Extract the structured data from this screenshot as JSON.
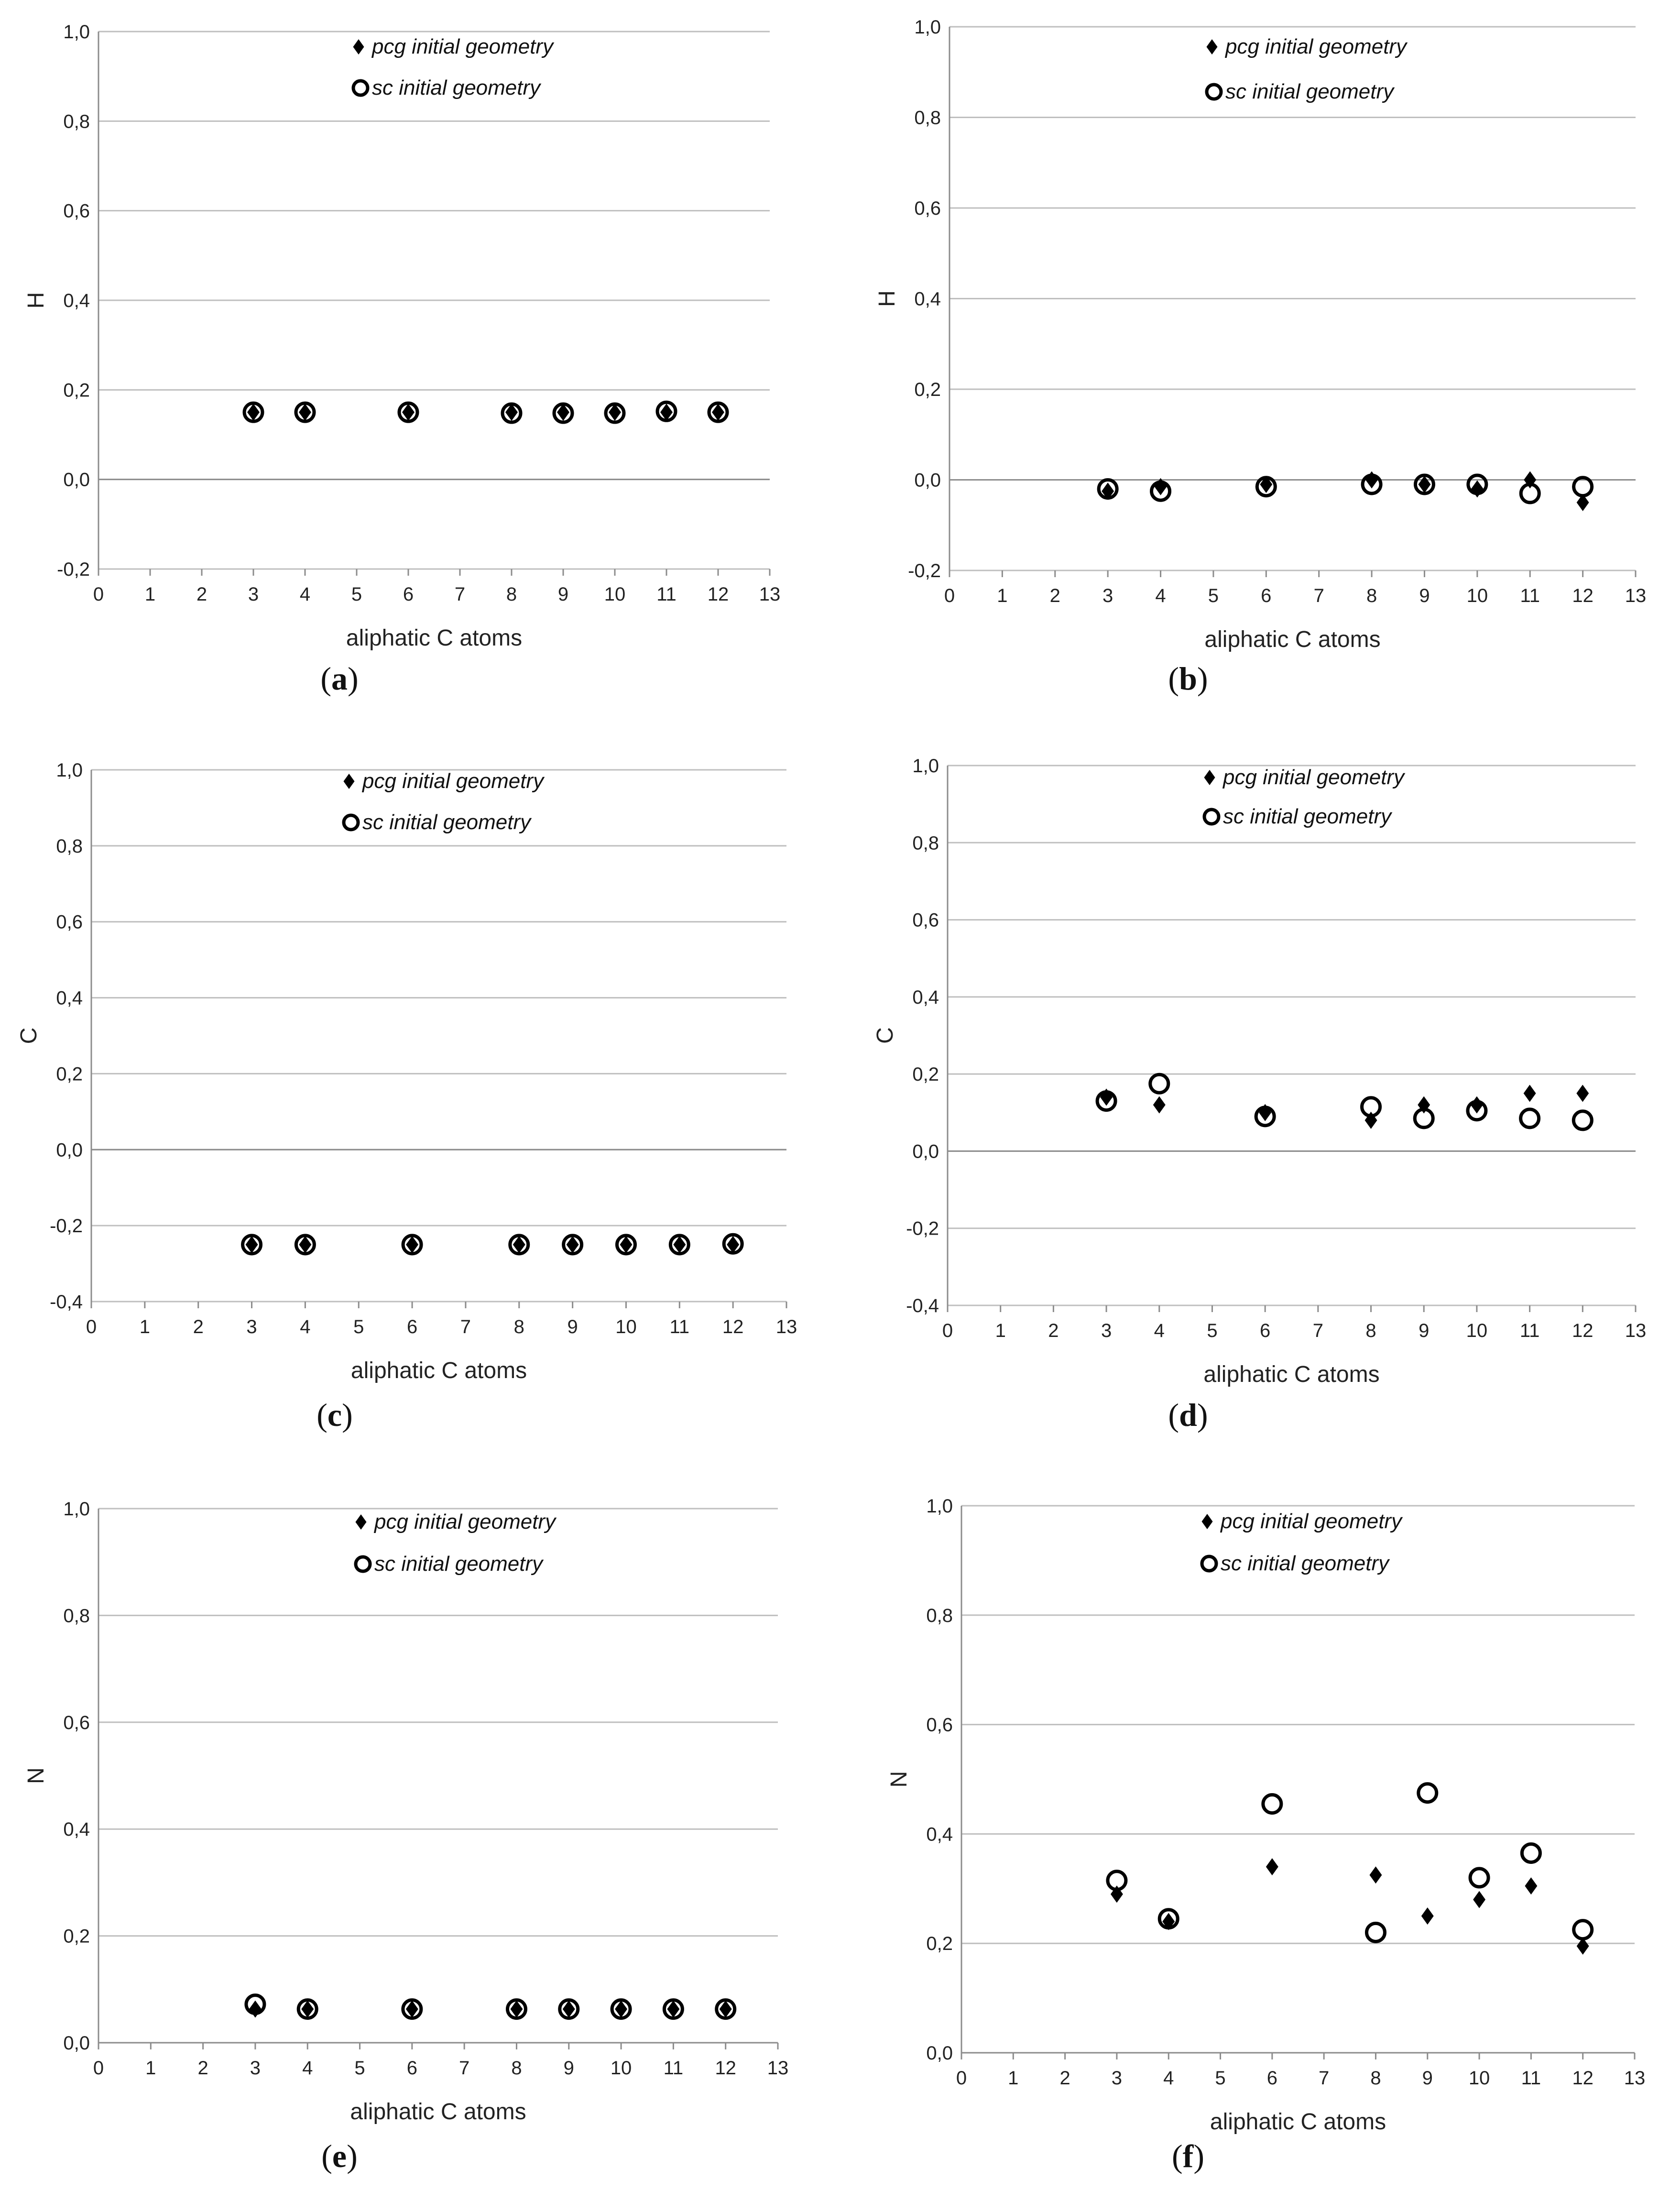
{
  "colors": {
    "background": "#ffffff",
    "grid": "#bfbfbf",
    "axis": "#8c8c8c",
    "marker": "#000000",
    "text": "#222222"
  },
  "captions": [
    "a",
    "b",
    "c",
    "d",
    "e",
    "f"
  ],
  "chart_data": [
    {
      "id": "a",
      "type": "scatter",
      "title": "",
      "xlabel": "aliphatic C atoms",
      "ylabel": "H",
      "xlim": [
        0,
        13
      ],
      "ylim": [
        -0.2,
        1.0
      ],
      "x_ticks": [
        "0",
        "1",
        "2",
        "3",
        "4",
        "5",
        "6",
        "7",
        "8",
        "9",
        "10",
        "11",
        "12",
        "13"
      ],
      "y_ticks": [
        "-0,2",
        "0,0",
        "0,2",
        "0,4",
        "0,6",
        "0,8",
        "1,0"
      ],
      "legend": [
        "pcg initial geometry",
        "sc initial geometry"
      ],
      "series": [
        {
          "name": "pcg initial geometry",
          "marker": "diamond",
          "x": [
            3,
            4,
            6,
            8,
            9,
            10,
            11,
            12
          ],
          "y": [
            0.15,
            0.15,
            0.15,
            0.15,
            0.15,
            0.15,
            0.15,
            0.15
          ]
        },
        {
          "name": "sc initial geometry",
          "marker": "circle",
          "x": [
            3,
            4,
            6,
            8,
            9,
            10,
            11,
            12
          ],
          "y": [
            0.15,
            0.15,
            0.15,
            0.148,
            0.148,
            0.148,
            0.152,
            0.15
          ]
        }
      ]
    },
    {
      "id": "b",
      "type": "scatter",
      "title": "",
      "xlabel": "aliphatic C atoms",
      "ylabel": "H",
      "xlim": [
        0,
        13
      ],
      "ylim": [
        -0.2,
        1.0
      ],
      "x_ticks": [
        "0",
        "1",
        "2",
        "3",
        "4",
        "5",
        "6",
        "7",
        "8",
        "9",
        "10",
        "11",
        "12",
        "13"
      ],
      "y_ticks": [
        "-0,2",
        "0,0",
        "0,2",
        "0,4",
        "0,6",
        "0,8",
        "1,0"
      ],
      "legend": [
        "pcg initial geometry",
        "sc initial geometry"
      ],
      "series": [
        {
          "name": "pcg initial geometry",
          "marker": "diamond",
          "x": [
            3,
            4,
            6,
            8,
            9,
            10,
            11,
            12
          ],
          "y": [
            -0.025,
            -0.015,
            -0.01,
            0.0,
            -0.01,
            -0.02,
            0.0,
            -0.05
          ]
        },
        {
          "name": "sc initial geometry",
          "marker": "circle",
          "x": [
            3,
            4,
            6,
            8,
            9,
            10,
            11,
            12
          ],
          "y": [
            -0.02,
            -0.025,
            -0.015,
            -0.01,
            -0.01,
            -0.01,
            -0.03,
            -0.015
          ]
        }
      ]
    },
    {
      "id": "c",
      "type": "scatter",
      "title": "",
      "xlabel": "aliphatic C atoms",
      "ylabel": "C",
      "xlim": [
        0,
        13
      ],
      "ylim": [
        -0.4,
        1.0
      ],
      "x_ticks": [
        "0",
        "1",
        "2",
        "3",
        "4",
        "5",
        "6",
        "7",
        "8",
        "9",
        "10",
        "11",
        "12",
        "13"
      ],
      "y_ticks": [
        "-0,4",
        "-0,2",
        "0,0",
        "0,2",
        "0,4",
        "0,6",
        "0,8",
        "1,0"
      ],
      "legend": [
        "pcg initial geometry",
        "sc initial geometry"
      ],
      "series": [
        {
          "name": "pcg initial geometry",
          "marker": "diamond",
          "x": [
            3,
            4,
            6,
            8,
            9,
            10,
            11,
            12
          ],
          "y": [
            -0.25,
            -0.25,
            -0.25,
            -0.25,
            -0.25,
            -0.25,
            -0.25,
            -0.25
          ]
        },
        {
          "name": "sc initial geometry",
          "marker": "circle",
          "x": [
            3,
            4,
            6,
            8,
            9,
            10,
            11,
            12
          ],
          "y": [
            -0.25,
            -0.25,
            -0.25,
            -0.25,
            -0.25,
            -0.25,
            -0.25,
            -0.248
          ]
        }
      ]
    },
    {
      "id": "d",
      "type": "scatter",
      "title": "",
      "xlabel": "aliphatic C atoms",
      "ylabel": "C",
      "xlim": [
        0,
        13
      ],
      "ylim": [
        -0.4,
        1.0
      ],
      "x_ticks": [
        "0",
        "1",
        "2",
        "3",
        "4",
        "5",
        "6",
        "7",
        "8",
        "9",
        "10",
        "11",
        "12",
        "13"
      ],
      "y_ticks": [
        "-0,4",
        "-0,2",
        "0,0",
        "0,2",
        "0,4",
        "0,6",
        "0,8",
        "1,0"
      ],
      "legend": [
        "pcg initial geometry",
        "sc initial geometry"
      ],
      "series": [
        {
          "name": "pcg initial geometry",
          "marker": "diamond",
          "x": [
            3,
            4,
            6,
            8,
            9,
            10,
            11,
            12
          ],
          "y": [
            0.14,
            0.12,
            0.1,
            0.08,
            0.12,
            0.12,
            0.15,
            0.15
          ]
        },
        {
          "name": "sc initial geometry",
          "marker": "circle",
          "x": [
            3,
            4,
            6,
            8,
            9,
            10,
            11,
            12
          ],
          "y": [
            0.13,
            0.175,
            0.09,
            0.115,
            0.085,
            0.105,
            0.085,
            0.08
          ]
        }
      ]
    },
    {
      "id": "e",
      "type": "scatter",
      "title": "",
      "xlabel": "aliphatic C atoms",
      "ylabel": "N",
      "xlim": [
        0,
        13
      ],
      "ylim": [
        0.0,
        1.0
      ],
      "x_ticks": [
        "0",
        "1",
        "2",
        "3",
        "4",
        "5",
        "6",
        "7",
        "8",
        "9",
        "10",
        "11",
        "12",
        "13"
      ],
      "y_ticks": [
        "0,0",
        "0,2",
        "0,4",
        "0,6",
        "0,8",
        "1,0"
      ],
      "legend": [
        "pcg initial geometry",
        "sc initial geometry"
      ],
      "series": [
        {
          "name": "pcg initial geometry",
          "marker": "diamond",
          "x": [
            3,
            4,
            6,
            8,
            9,
            10,
            11,
            12
          ],
          "y": [
            0.063,
            0.063,
            0.063,
            0.063,
            0.063,
            0.063,
            0.063,
            0.063
          ]
        },
        {
          "name": "sc initial geometry",
          "marker": "circle",
          "x": [
            3,
            4,
            6,
            8,
            9,
            10,
            11,
            12
          ],
          "y": [
            0.072,
            0.063,
            0.063,
            0.063,
            0.063,
            0.063,
            0.063,
            0.063
          ]
        }
      ]
    },
    {
      "id": "f",
      "type": "scatter",
      "title": "",
      "xlabel": "aliphatic C atoms",
      "ylabel": "N",
      "xlim": [
        0,
        13
      ],
      "ylim": [
        0.0,
        1.0
      ],
      "x_ticks": [
        "0",
        "1",
        "2",
        "3",
        "4",
        "5",
        "6",
        "7",
        "8",
        "9",
        "10",
        "11",
        "12",
        "13"
      ],
      "y_ticks": [
        "0,0",
        "0,2",
        "0,4",
        "0,6",
        "0,8",
        "1,0"
      ],
      "legend": [
        "pcg initial geometry",
        "sc initial geometry"
      ],
      "series": [
        {
          "name": "pcg initial geometry",
          "marker": "diamond",
          "x": [
            3,
            4,
            6,
            8,
            9,
            10,
            11,
            12
          ],
          "y": [
            0.29,
            0.24,
            0.34,
            0.325,
            0.25,
            0.28,
            0.305,
            0.195
          ]
        },
        {
          "name": "sc initial geometry",
          "marker": "circle",
          "x": [
            3,
            4,
            6,
            8,
            9,
            10,
            11,
            12
          ],
          "y": [
            0.315,
            0.245,
            0.455,
            0.22,
            0.475,
            0.32,
            0.365,
            0.225
          ]
        }
      ]
    }
  ]
}
